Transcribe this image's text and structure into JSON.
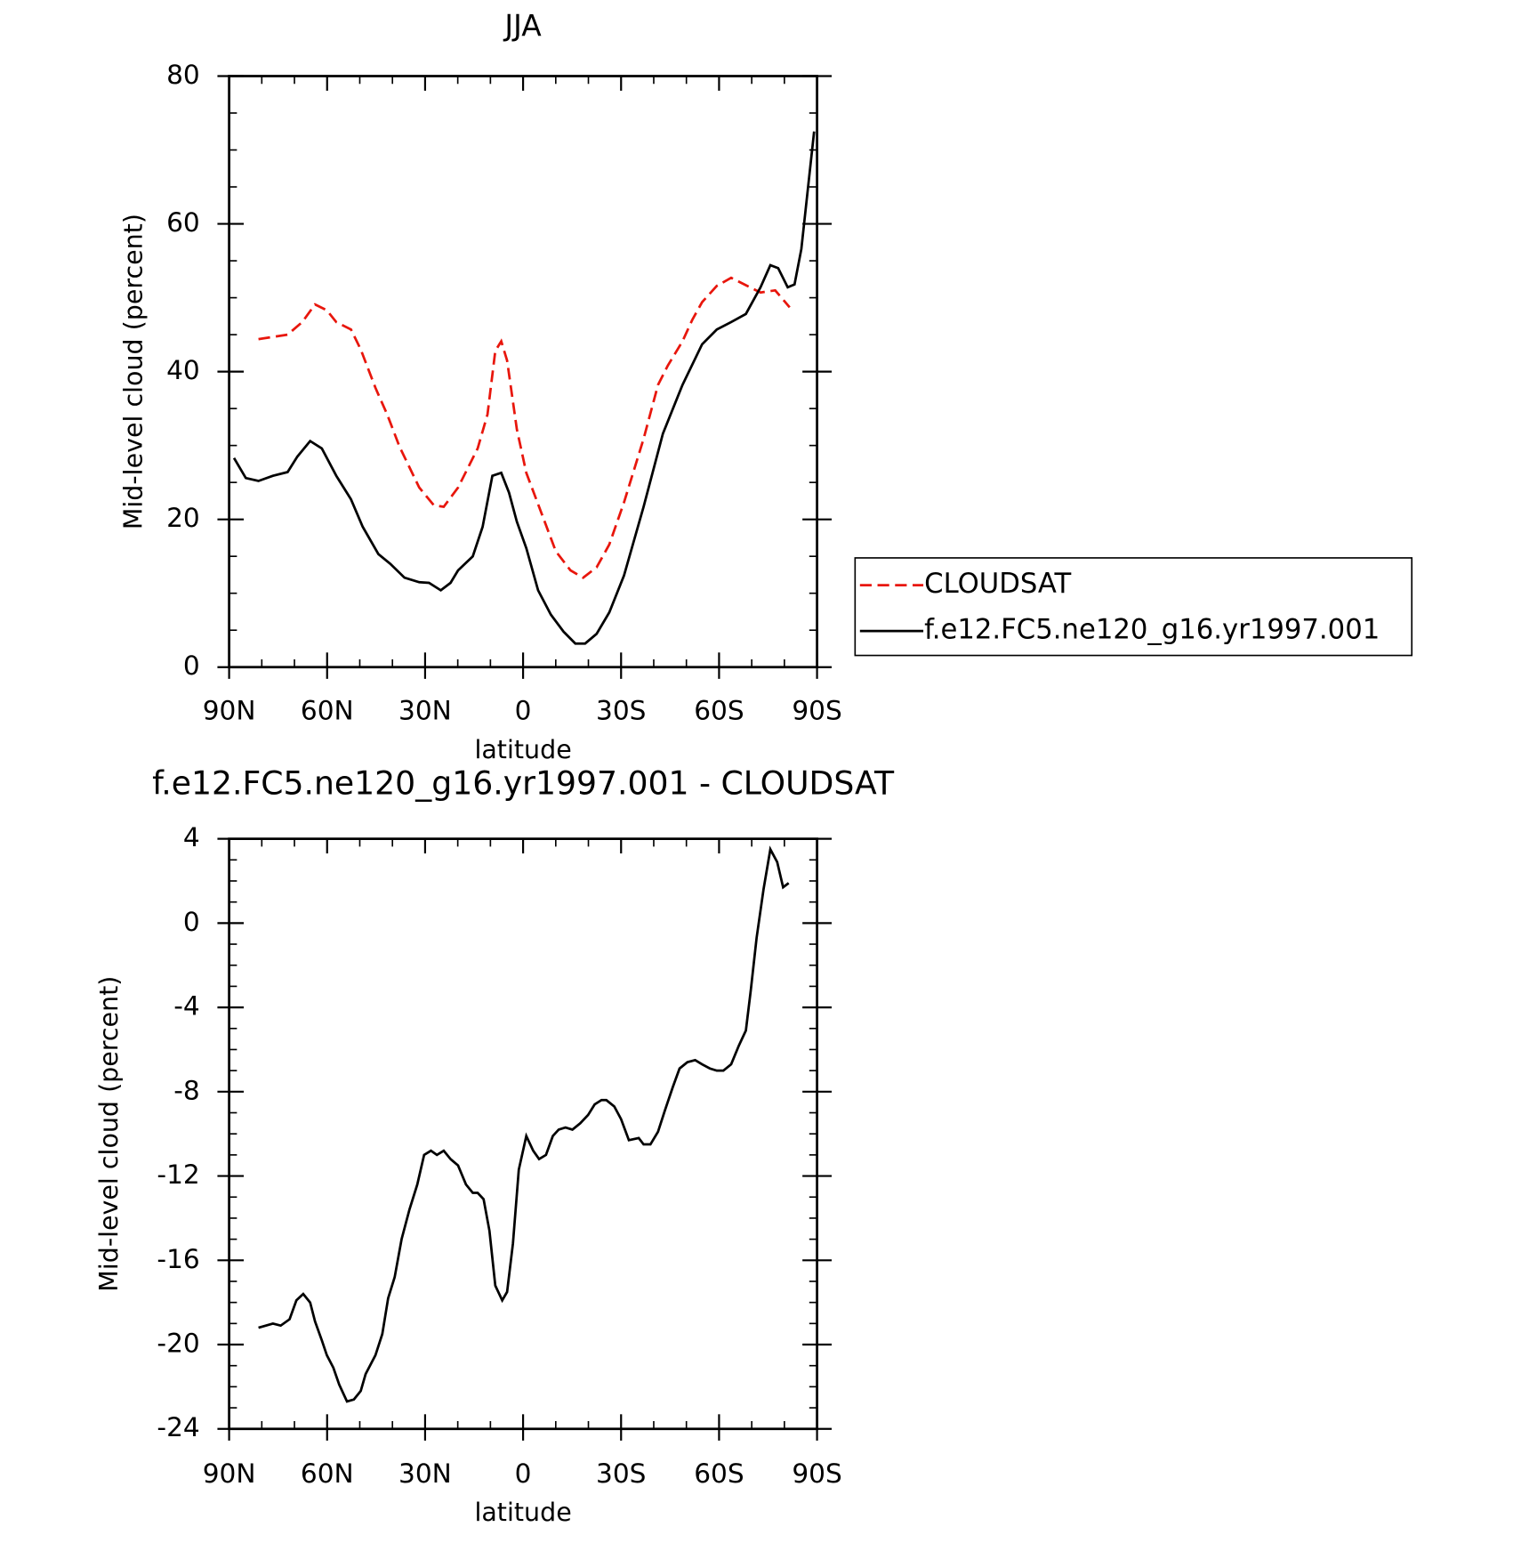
{
  "chart_data": [
    {
      "type": "line",
      "title": "JJA",
      "xlabel": "latitude",
      "ylabel": "Mid-level cloud (percent)",
      "xlim": [
        90,
        -90
      ],
      "xticks": [
        {
          "value": 90,
          "label": "90N"
        },
        {
          "value": 60,
          "label": "60N"
        },
        {
          "value": 30,
          "label": "30N"
        },
        {
          "value": 0,
          "label": "0"
        },
        {
          "value": -30,
          "label": "30S"
        },
        {
          "value": -60,
          "label": "60S"
        },
        {
          "value": -90,
          "label": "90S"
        }
      ],
      "xminorticks": [
        80,
        70,
        50,
        40,
        20,
        10,
        -10,
        -20,
        -40,
        -50,
        -70,
        -80
      ],
      "ylim": [
        0,
        80
      ],
      "yticks": [
        0,
        20,
        40,
        60,
        80
      ],
      "yminorticks": [
        5,
        10,
        15,
        25,
        30,
        35,
        45,
        50,
        55,
        65,
        70,
        75
      ],
      "legend": "right",
      "series": [
        {
          "name": "CLOUDSAT",
          "color": "#e8160c",
          "dash": true,
          "x": [
            81.0,
            72.1,
            67.6,
            63.7,
            60.1,
            57.2,
            52.7,
            49.7,
            45.2,
            41.6,
            37.8,
            31.8,
            27.3,
            24.3,
            19.9,
            13.9,
            10.9,
            8.5,
            6.7,
            4.9,
            1.9,
            -1.0,
            -5.5,
            -10.0,
            -14.5,
            -18.4,
            -22.5,
            -26.4,
            -30.9,
            -36.9,
            -41.3,
            -44.3,
            -48.8,
            -51.8,
            -54.8,
            -59.3,
            -63.7,
            -68.2,
            -72.7,
            -77.2,
            -81.6
          ],
          "values": [
            44.4,
            45,
            46.7,
            49.1,
            48.3,
            46.7,
            45.7,
            43,
            37.8,
            34.2,
            29.8,
            24.3,
            21.9,
            21.7,
            24.3,
            29.6,
            34.2,
            42.8,
            44.1,
            41.5,
            32.2,
            26.3,
            21,
            15.7,
            13.1,
            12.1,
            13.5,
            16.6,
            22.3,
            30.9,
            38.2,
            40.8,
            44.1,
            47,
            49.4,
            51.6,
            52.7,
            51.7,
            50.7,
            51,
            48.7
          ]
        },
        {
          "name": "f.e12.FC5.ne120_g16.yr1997.001",
          "color": "#000000",
          "x": [
            88.5,
            84.9,
            81.0,
            76.6,
            72.1,
            69.1,
            65.2,
            61.6,
            57.2,
            52.7,
            49.1,
            44.3,
            40.7,
            36.3,
            31.8,
            28.8,
            25.2,
            22.2,
            19.9,
            15.4,
            12.4,
            9.4,
            6.7,
            4.3,
            1.9,
            -1.0,
            -4.6,
            -8.5,
            -12.4,
            -16.0,
            -19.0,
            -22.5,
            -26.4,
            -30.9,
            -36.9,
            -42.8,
            -48.8,
            -54.8,
            -59.3,
            -63.7,
            -68.2,
            -72.7,
            -75.7,
            -78.1,
            -81.0,
            -83.1,
            -85.2,
            -87.0,
            -89.1
          ],
          "values": [
            28.3,
            25.6,
            25.2,
            25.9,
            26.4,
            28.5,
            30.6,
            29.6,
            25.9,
            22.7,
            19,
            15.3,
            14,
            12.1,
            11.5,
            11.4,
            10.4,
            11.4,
            13.1,
            15,
            19,
            25.9,
            26.3,
            23.6,
            19.7,
            16.1,
            10.4,
            7.1,
            4.8,
            3.2,
            3.2,
            4.5,
            7.4,
            12.4,
            21.7,
            31.6,
            38.2,
            43.7,
            45.7,
            46.7,
            47.8,
            51.4,
            54.4,
            54,
            51.4,
            51.8,
            56.6,
            63.9,
            72.5
          ]
        }
      ]
    },
    {
      "type": "line",
      "title": "f.e12.FC5.ne120_g16.yr1997.001 - CLOUDSAT",
      "xlabel": "latitude",
      "ylabel": "Mid-level cloud (percent)",
      "xlim": [
        90,
        -90
      ],
      "xticks": [
        {
          "value": 90,
          "label": "90N"
        },
        {
          "value": 60,
          "label": "60N"
        },
        {
          "value": 30,
          "label": "30N"
        },
        {
          "value": 0,
          "label": "0"
        },
        {
          "value": -30,
          "label": "30S"
        },
        {
          "value": -60,
          "label": "60S"
        },
        {
          "value": -90,
          "label": "90S"
        }
      ],
      "xminorticks": [
        80,
        70,
        50,
        40,
        20,
        10,
        -10,
        -20,
        -40,
        -50,
        -70,
        -80
      ],
      "ylim": [
        -24,
        4
      ],
      "yticks": [
        -24,
        -20,
        -16,
        -12,
        -8,
        -4,
        0,
        4
      ],
      "yminorticks": [
        -23,
        -22,
        -21,
        -19,
        -18,
        -17,
        -15,
        -14,
        -13,
        -11,
        -10,
        -9,
        -7,
        -6,
        -5,
        -3,
        -2,
        -1,
        1,
        2,
        3
      ],
      "series": [
        {
          "color": "#000000",
          "x": [
            81.0,
            76.6,
            74.2,
            71.5,
            69.4,
            67.3,
            65.2,
            63.7,
            61.6,
            60.1,
            58.1,
            56.3,
            53.9,
            51.8,
            49.7,
            48.2,
            45.2,
            43.1,
            41.3,
            39.3,
            37.2,
            34.8,
            32.4,
            30.3,
            28.2,
            26.4,
            24.3,
            22.2,
            19.9,
            17.5,
            15.4,
            13.9,
            12.1,
            10.3,
            8.5,
            6.4,
            4.9,
            3.1,
            1.3,
            -1.0,
            -3.1,
            -4.9,
            -7.0,
            -9.1,
            -10.9,
            -13.0,
            -15.1,
            -17.5,
            -19.9,
            -21.9,
            -24.0,
            -25.5,
            -27.9,
            -30.0,
            -32.4,
            -35.4,
            -36.9,
            -39.0,
            -41.3,
            -43.4,
            -45.8,
            -47.9,
            -50.3,
            -52.7,
            -54.8,
            -57.2,
            -59.3,
            -61.3,
            -63.7,
            -66.1,
            -68.2,
            -69.7,
            -71.5,
            -73.6,
            -75.7,
            -77.8,
            -79.6,
            -81.3
          ],
          "values": [
            -19.2,
            -19.0,
            -19.1,
            -18.8,
            -17.9,
            -17.6,
            -18.0,
            -18.9,
            -19.8,
            -20.5,
            -21.1,
            -21.9,
            -22.7,
            -22.6,
            -22.2,
            -21.4,
            -20.5,
            -19.5,
            -17.8,
            -16.8,
            -15.0,
            -13.6,
            -12.4,
            -11.0,
            -10.8,
            -11.0,
            -10.8,
            -11.2,
            -11.5,
            -12.4,
            -12.8,
            -12.8,
            -13.1,
            -14.6,
            -17.2,
            -17.9,
            -17.5,
            -15.2,
            -11.7,
            -10.1,
            -10.8,
            -11.2,
            -11.0,
            -10.1,
            -9.8,
            -9.7,
            -9.8,
            -9.5,
            -9.1,
            -8.6,
            -8.4,
            -8.4,
            -8.7,
            -9.3,
            -10.3,
            -10.2,
            -10.5,
            -10.5,
            -9.9,
            -8.9,
            -7.8,
            -6.9,
            -6.6,
            -6.5,
            -6.7,
            -6.9,
            -7.0,
            -7.0,
            -6.7,
            -5.8,
            -5.1,
            -3.2,
            -0.7,
            1.6,
            3.5,
            2.9,
            1.7,
            1.9
          ]
        }
      ]
    }
  ]
}
